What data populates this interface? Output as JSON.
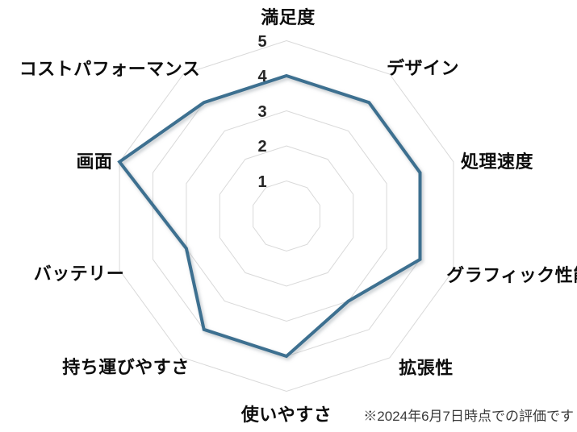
{
  "chart_data": {
    "type": "radar",
    "categories": [
      "満足度",
      "デザイン",
      "処理速度",
      "グラフィック性能",
      "拡張性",
      "使いやすさ",
      "持ち運びやすさ",
      "バッテリー",
      "画面",
      "コストパフォーマンス"
    ],
    "values": [
      4,
      4,
      4,
      4,
      3,
      4,
      4,
      3,
      5,
      4
    ],
    "scale_ticks": [
      "5",
      "4",
      "3",
      "2",
      "1"
    ],
    "scale_min": 0,
    "scale_max": 5,
    "grid": true,
    "legend": "none",
    "title": "",
    "line_color": "#3C7090",
    "grid_color": "#D9D9D9",
    "note": "※2024年6月7日時点での評価です"
  }
}
